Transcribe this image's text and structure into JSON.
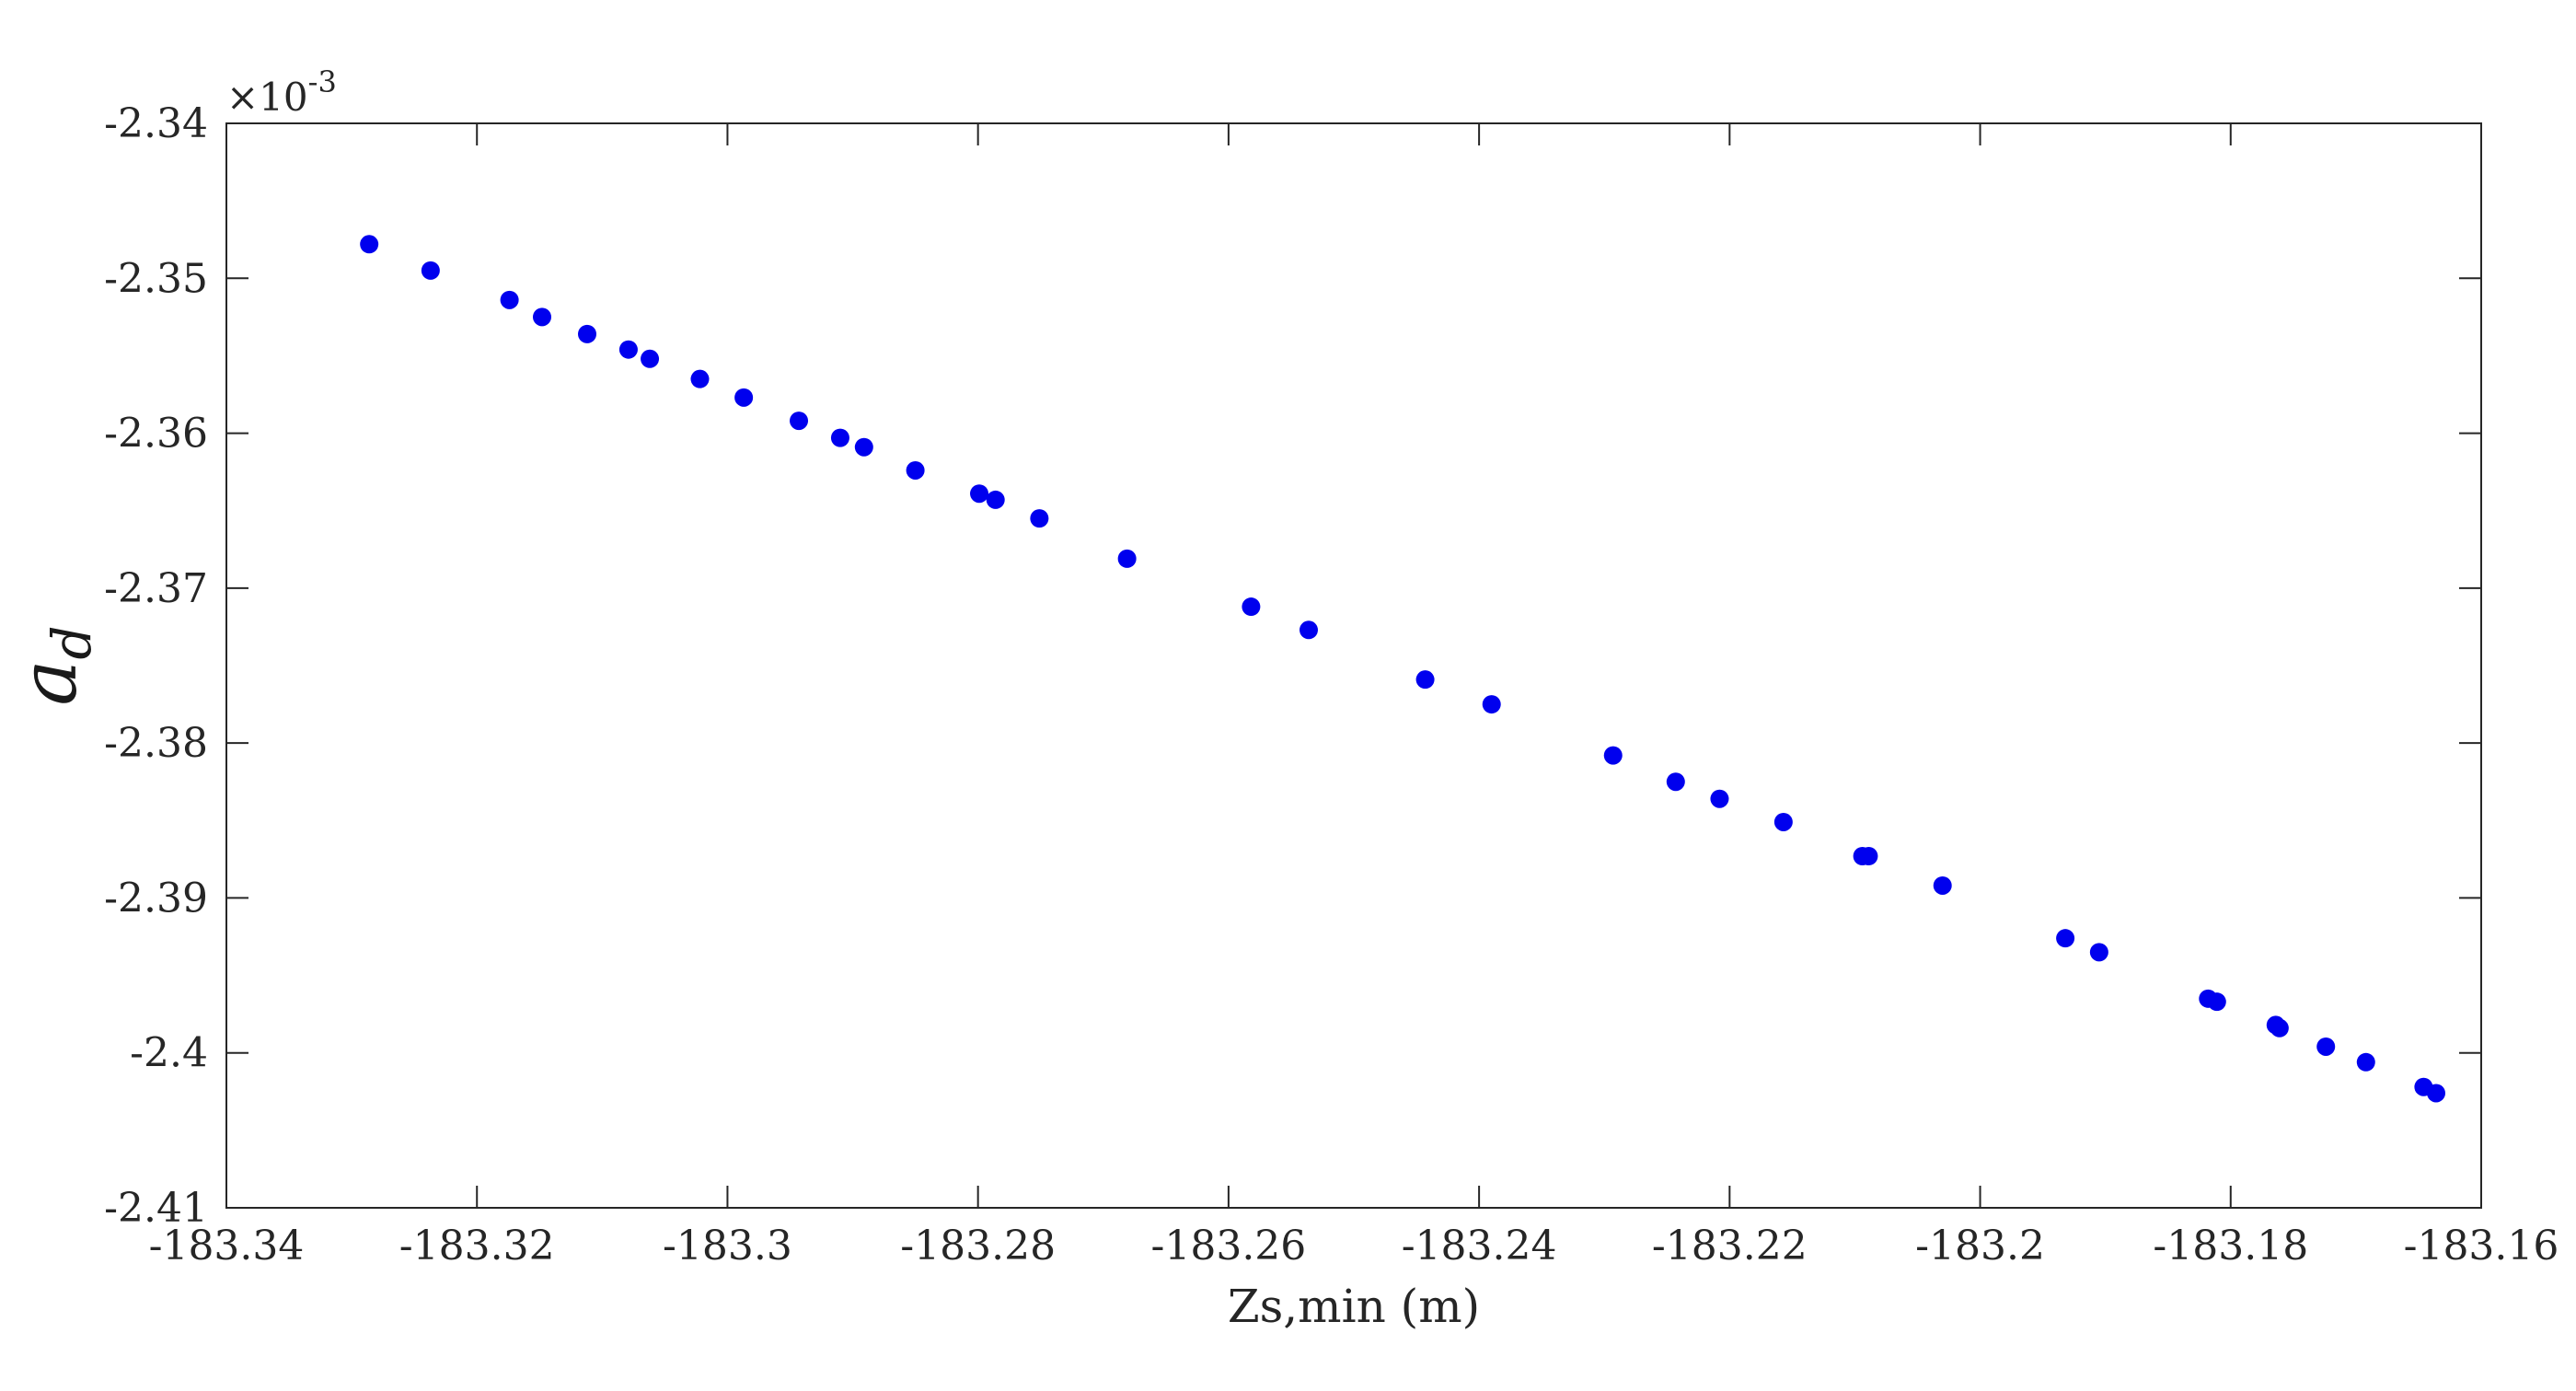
{
  "chart_data": {
    "type": "scatter",
    "title": "",
    "xlabel": "Zs,min (m)",
    "ylabel": {
      "main": "a",
      "subscript": "d"
    },
    "y_exponent_label": {
      "base": "×10",
      "exponent": "-3"
    },
    "xlim": [
      -183.34,
      -183.16
    ],
    "ylim": [
      -2.41,
      -2.34
    ],
    "x_ticks": [
      -183.34,
      -183.32,
      -183.3,
      -183.28,
      -183.26,
      -183.24,
      -183.22,
      -183.2,
      -183.18,
      -183.16
    ],
    "x_tick_labels": [
      "-183.34",
      "-183.32",
      "-183.3",
      "-183.28",
      "-183.26",
      "-183.24",
      "-183.22",
      "-183.2",
      "-183.18",
      "-183.16"
    ],
    "y_ticks": [
      -2.41,
      -2.4,
      -2.39,
      -2.38,
      -2.37,
      -2.36,
      -2.35,
      -2.34
    ],
    "y_tick_labels": [
      "-2.41",
      "-2.4",
      "-2.39",
      "-2.38",
      "-2.37",
      "-2.36",
      "-2.35",
      "-2.34"
    ],
    "grid": false,
    "marker_color": "#0000ee",
    "series": [
      {
        "x": [
          -183.3286,
          -183.3237,
          -183.3174,
          -183.3148,
          -183.3112,
          -183.3079,
          -183.3062,
          -183.3022,
          -183.2987,
          -183.2943,
          -183.291,
          -183.2891,
          -183.285,
          -183.2799,
          -183.2786,
          -183.2751,
          -183.2681,
          -183.2582,
          -183.2536,
          -183.2443,
          -183.239,
          -183.2293,
          -183.2243,
          -183.2208,
          -183.2157,
          -183.2094,
          -183.2089,
          -183.203,
          -183.1932,
          -183.1905,
          -183.1818,
          -183.1811,
          -183.1764,
          -183.1761,
          -183.1724,
          -183.1692,
          -183.1646,
          -183.1636
        ],
        "y": [
          -2.3478,
          -2.3495,
          -2.3514,
          -2.3525,
          -2.3536,
          -2.3546,
          -2.3552,
          -2.3565,
          -2.3577,
          -2.3592,
          -2.3603,
          -2.3609,
          -2.3624,
          -2.3639,
          -2.3643,
          -2.3655,
          -2.3681,
          -2.3712,
          -2.3727,
          -2.3759,
          -2.3775,
          -2.3808,
          -2.3825,
          -2.3836,
          -2.3851,
          -2.3873,
          -2.3873,
          -2.3892,
          -2.3926,
          -2.3935,
          -2.3965,
          -2.3967,
          -2.3982,
          -2.3984,
          -2.3996,
          -2.4006,
          -2.4022,
          -2.4026
        ]
      }
    ]
  }
}
